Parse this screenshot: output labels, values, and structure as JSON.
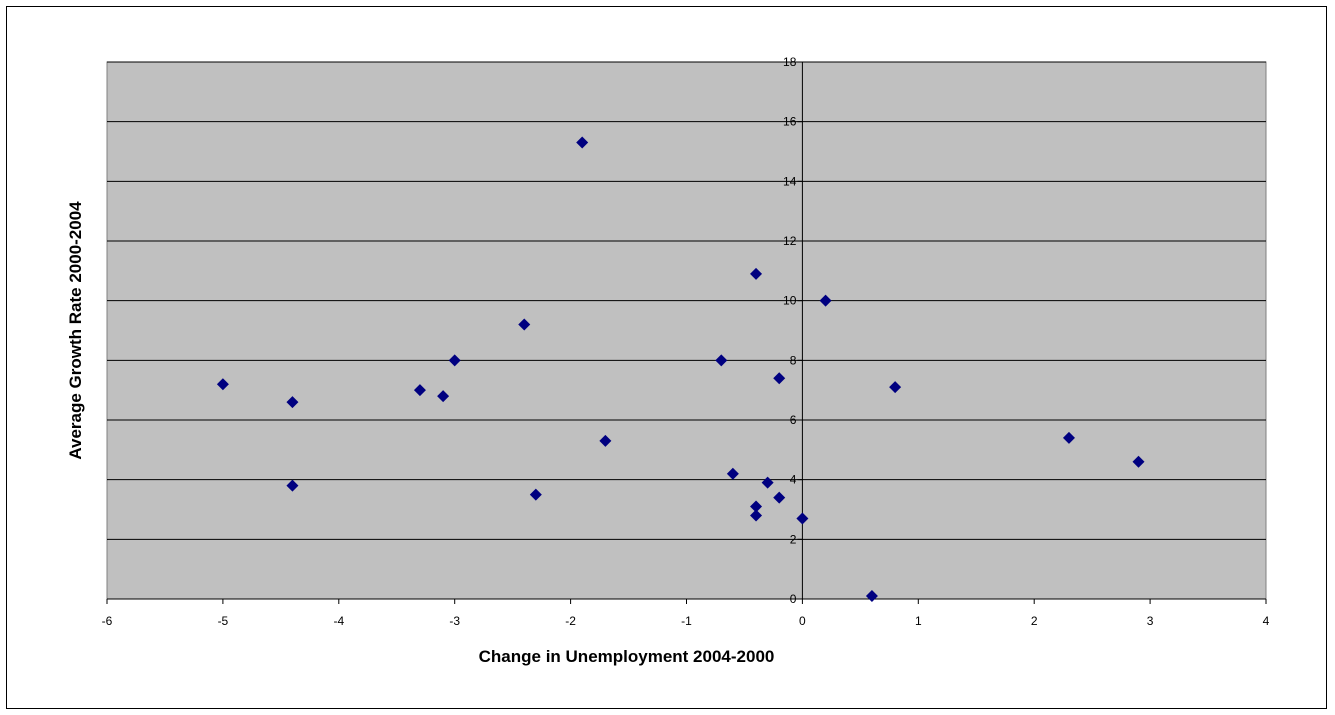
{
  "chart_data": {
    "type": "scatter",
    "title": "",
    "xlabel": "Change in Unemployment 2004-2000",
    "ylabel": "Average Growth Rate 2000-2004",
    "xlim": [
      -6,
      4
    ],
    "ylim": [
      0,
      18
    ],
    "x_ticks": [
      -6,
      -5,
      -4,
      -3,
      -2,
      -1,
      0,
      1,
      2,
      3,
      4
    ],
    "y_ticks": [
      0,
      2,
      4,
      6,
      8,
      10,
      12,
      14,
      16,
      18
    ],
    "grid": "horizontal",
    "legend": "none",
    "plot_background": "#c0c0c0",
    "marker_color": "#000080",
    "marker": "diamond",
    "points": [
      {
        "x": -5.0,
        "y": 7.2
      },
      {
        "x": -4.4,
        "y": 6.6
      },
      {
        "x": -4.4,
        "y": 3.8
      },
      {
        "x": -3.3,
        "y": 7.0
      },
      {
        "x": -3.1,
        "y": 6.8
      },
      {
        "x": -3.0,
        "y": 8.0
      },
      {
        "x": -2.4,
        "y": 9.2
      },
      {
        "x": -2.3,
        "y": 3.5
      },
      {
        "x": -1.9,
        "y": 15.3
      },
      {
        "x": -1.7,
        "y": 5.3
      },
      {
        "x": -0.7,
        "y": 8.0
      },
      {
        "x": -0.6,
        "y": 4.2
      },
      {
        "x": -0.4,
        "y": 10.9
      },
      {
        "x": -0.4,
        "y": 3.1
      },
      {
        "x": -0.4,
        "y": 2.8
      },
      {
        "x": -0.3,
        "y": 3.9
      },
      {
        "x": -0.2,
        "y": 7.4
      },
      {
        "x": -0.2,
        "y": 3.4
      },
      {
        "x": 0.0,
        "y": 2.7
      },
      {
        "x": 0.2,
        "y": 10.0
      },
      {
        "x": 0.6,
        "y": 0.1
      },
      {
        "x": 0.8,
        "y": 7.1
      },
      {
        "x": 2.3,
        "y": 5.4
      },
      {
        "x": 2.9,
        "y": 4.6
      }
    ]
  }
}
